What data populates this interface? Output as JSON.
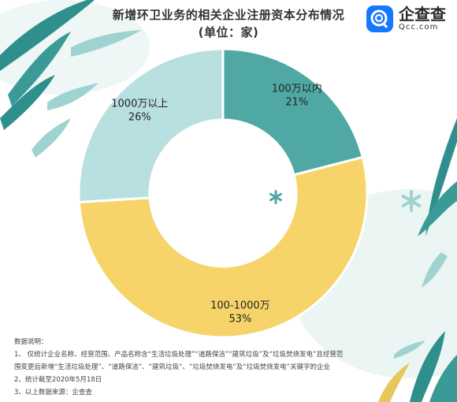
{
  "title": {
    "line1": "新增环卫业务的相关企业注册资本分布情况",
    "line2": "(单位：家)"
  },
  "logo": {
    "name_cn": "企查查",
    "name_en": "Qcc.com",
    "icon": "qcc-magnifier-logo-icon",
    "color": "#1677ff"
  },
  "chart_data": {
    "type": "pie",
    "variant": "donut",
    "unit": "家",
    "series": [
      {
        "label": "100万以内",
        "value": 21,
        "percent": "21%",
        "color": "#4fa8a4"
      },
      {
        "label": "100-1000万",
        "value": 53,
        "percent": "53%",
        "color": "#f7d46a"
      },
      {
        "label": "1000万以上",
        "value": 26,
        "percent": "26%",
        "color": "#b8e0e0"
      }
    ]
  },
  "notes": {
    "heading": "数据说明：",
    "lines": [
      "1、 仅统计企业名称、经营范围、产品名称含“生活垃圾处理”“道路保洁”“建筑垃圾”及“垃圾焚烧发电”且经营范",
      "围变更后新增“生活垃圾处理”、“道路保洁”、“建筑垃圾”、“垃圾焚烧发电”及“垃圾焚烧发电”关键字的企业",
      "2、统计截至2020年5月18日",
      "3、以上数据来源：企查查"
    ]
  },
  "colors": {
    "leaf_dark": "#2f8f8c",
    "leaf_light": "#9fd3d1",
    "background_blob": "#eaf5f4"
  }
}
